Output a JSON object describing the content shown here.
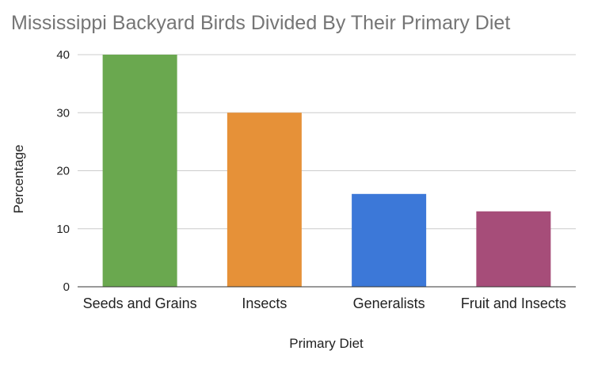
{
  "chart_data": {
    "type": "bar",
    "title": "Mississippi  Backyard Birds Divided By Their Primary Diet",
    "xlabel": "Primary Diet",
    "ylabel": "Percentage",
    "categories": [
      "Seeds and Grains",
      "Insects",
      "Generalists",
      "Fruit and Insects"
    ],
    "values": [
      40,
      30,
      16,
      13
    ],
    "colors": [
      "#6aa84f",
      "#e69138",
      "#3c78d8",
      "#a64d79"
    ],
    "ylim": [
      0,
      40
    ],
    "yticks": [
      "0",
      "10",
      "20",
      "30",
      "40"
    ],
    "grid": true,
    "legend": "none"
  }
}
